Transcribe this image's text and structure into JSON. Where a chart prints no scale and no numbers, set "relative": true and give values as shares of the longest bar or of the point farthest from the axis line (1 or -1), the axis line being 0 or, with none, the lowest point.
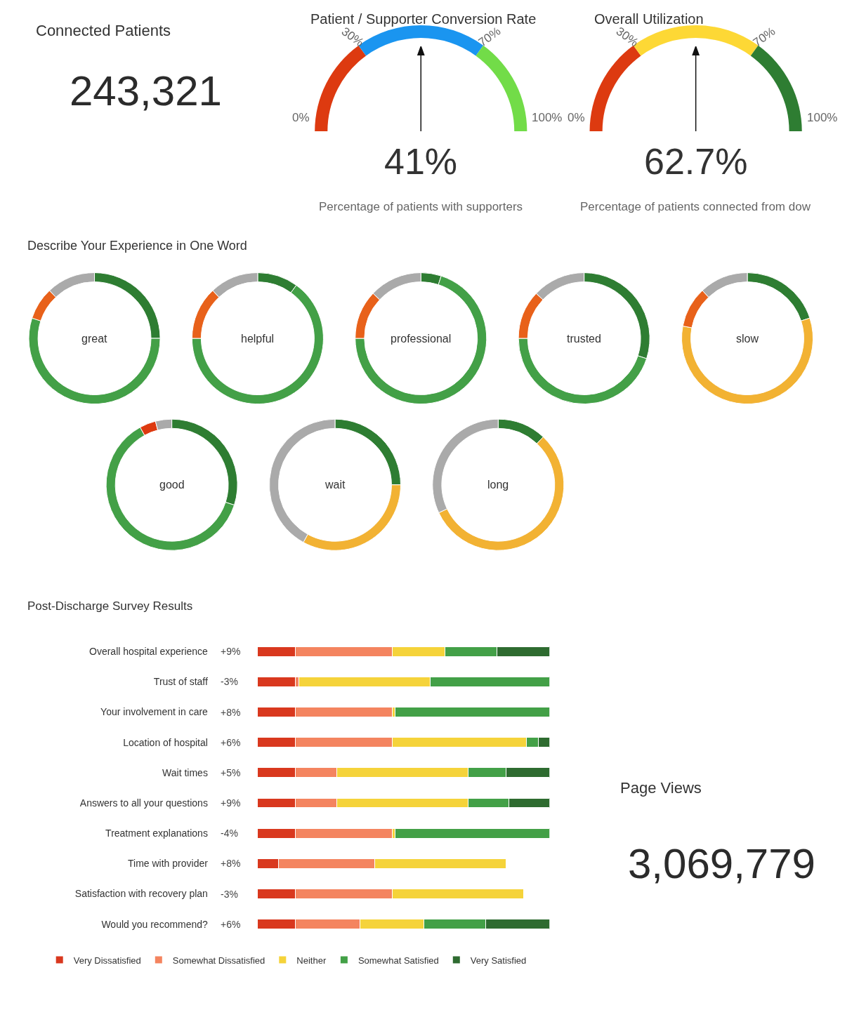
{
  "chart_data": [
    {
      "type": "other",
      "title": "Connected Patients",
      "annotations": [
        "243,321"
      ]
    },
    {
      "type": "donut",
      "title": "Patient / Supporter Conversion Rate",
      "subtitle": "Percentage of patients with supporters",
      "categories": [
        "0%",
        "30%",
        "70%"
      ],
      "values": [
        30,
        40,
        30
      ],
      "colors": [
        "#dd3a10",
        "#1a95f0",
        "#72dc48"
      ],
      "needle": "30%",
      "annotations": [
        "41%",
        "100%"
      ]
    },
    {
      "type": "donut",
      "title": "Overall Utilization",
      "subtitle": "Percentage of patients connected from dow",
      "categories": [
        "0%",
        "30%",
        "70%"
      ],
      "values": [
        30,
        40,
        30
      ],
      "colors": [
        "#dd3a10",
        "#fdd835",
        "#2e7d32"
      ],
      "needle": "30%",
      "annotations": [
        "62.7%",
        "100%"
      ]
    },
    {
      "type": "donut",
      "title": "Describe Your Experience in One Word",
      "categories": [
        null,
        null,
        null,
        null
      ],
      "values": [
        25,
        55,
        8,
        12
      ],
      "colors": [
        "#2e7d32",
        "#43a047",
        "#e8611a",
        "#aaaaaa"
      ],
      "annotations": [
        "great"
      ]
    },
    {
      "type": "donut",
      "categories": [
        null,
        null,
        null,
        null
      ],
      "values": [
        10,
        65,
        13,
        12
      ],
      "colors": [
        "#2e7d32",
        "#43a047",
        "#e8611a",
        "#aaaaaa"
      ],
      "annotations": [
        "helpful"
      ]
    },
    {
      "type": "donut",
      "categories": [
        null,
        null,
        null,
        null
      ],
      "values": [
        5,
        70,
        12,
        13
      ],
      "colors": [
        "#2e7d32",
        "#43a047",
        "#e8611a",
        "#aaaaaa"
      ],
      "annotations": [
        "professional"
      ]
    },
    {
      "type": "donut",
      "categories": [
        null,
        null,
        null,
        null
      ],
      "values": [
        30,
        45,
        12,
        13
      ],
      "colors": [
        "#2e7d32",
        "#43a047",
        "#e8611a",
        "#aaaaaa"
      ],
      "annotations": [
        "trusted"
      ]
    },
    {
      "type": "donut",
      "categories": [
        null,
        null,
        null,
        null
      ],
      "values": [
        20,
        58,
        10,
        12
      ],
      "colors": [
        "#2e7d32",
        "#f2b233",
        "#e8611a",
        "#aaaaaa"
      ],
      "annotations": [
        "slow"
      ]
    },
    {
      "type": "donut",
      "categories": [
        null,
        null,
        null,
        null
      ],
      "values": [
        30,
        62,
        4,
        4
      ],
      "colors": [
        "#2e7d32",
        "#43a047",
        "#dd3a10",
        "#aaaaaa"
      ],
      "annotations": [
        "good"
      ]
    },
    {
      "type": "donut",
      "categories": [
        null,
        null,
        null
      ],
      "values": [
        25,
        33,
        42
      ],
      "colors": [
        "#2e7d32",
        "#f2b233",
        "#aaaaaa"
      ],
      "annotations": [
        "wait"
      ]
    },
    {
      "type": "donut",
      "categories": [
        null,
        null,
        null
      ],
      "values": [
        12,
        56,
        32
      ],
      "colors": [
        "#2e7d32",
        "#f2b233",
        "#aaaaaa"
      ],
      "annotations": [
        "long"
      ]
    },
    {
      "type": "bar",
      "orientation": "horizontal",
      "stacked": true,
      "relative": true,
      "legend": "bottom",
      "title": "Post-Discharge Survey Results",
      "categories": [
        "Overall hospital experience",
        "Trust of staff",
        "Your involvement in care",
        "Location of hospital",
        "Wait times",
        "Answers to all your questions",
        "Treatment explanations",
        "Time with provider",
        "Satisfaction with recovery plan",
        "Would you recommend?"
      ],
      "series": [
        {
          "name": "Very Dissatisfied",
          "color": "#d9381e",
          "values": [
            0.13,
            0.13,
            0.13,
            0.13,
            0.13,
            0.13,
            0.13,
            0.07,
            0.13,
            0.13
          ]
        },
        {
          "name": "Somewhat Dissatisfied",
          "color": "#f4845f",
          "values": [
            0.33,
            0.01,
            0.33,
            0.33,
            0.14,
            0.14,
            0.33,
            0.33,
            0.33,
            0.22
          ]
        },
        {
          "name": "Neither",
          "color": "#f5d33a",
          "values": [
            0.18,
            0.45,
            0.01,
            0.46,
            0.45,
            0.45,
            0.01,
            0.45,
            0.45,
            0.22
          ]
        },
        {
          "name": "Somewhat Satisfied",
          "color": "#43a047",
          "values": [
            0.18,
            0.41,
            0.53,
            0.04,
            0.13,
            0.14,
            0.53,
            null,
            null,
            0.21
          ]
        },
        {
          "name": "Very Satisfied",
          "color": "#2e6b30",
          "values": [
            0.18,
            0,
            0,
            0.04,
            0.15,
            0.14,
            0,
            null,
            null,
            0.22
          ]
        }
      ],
      "annotations": [
        "+9%",
        "-3%",
        "+8%",
        "+6%",
        "+5%",
        "+9%",
        "-4%",
        "+8%",
        "-3%",
        "+6%"
      ]
    },
    {
      "type": "other",
      "title": "Page Views",
      "annotations": [
        "3,069,779"
      ]
    }
  ]
}
